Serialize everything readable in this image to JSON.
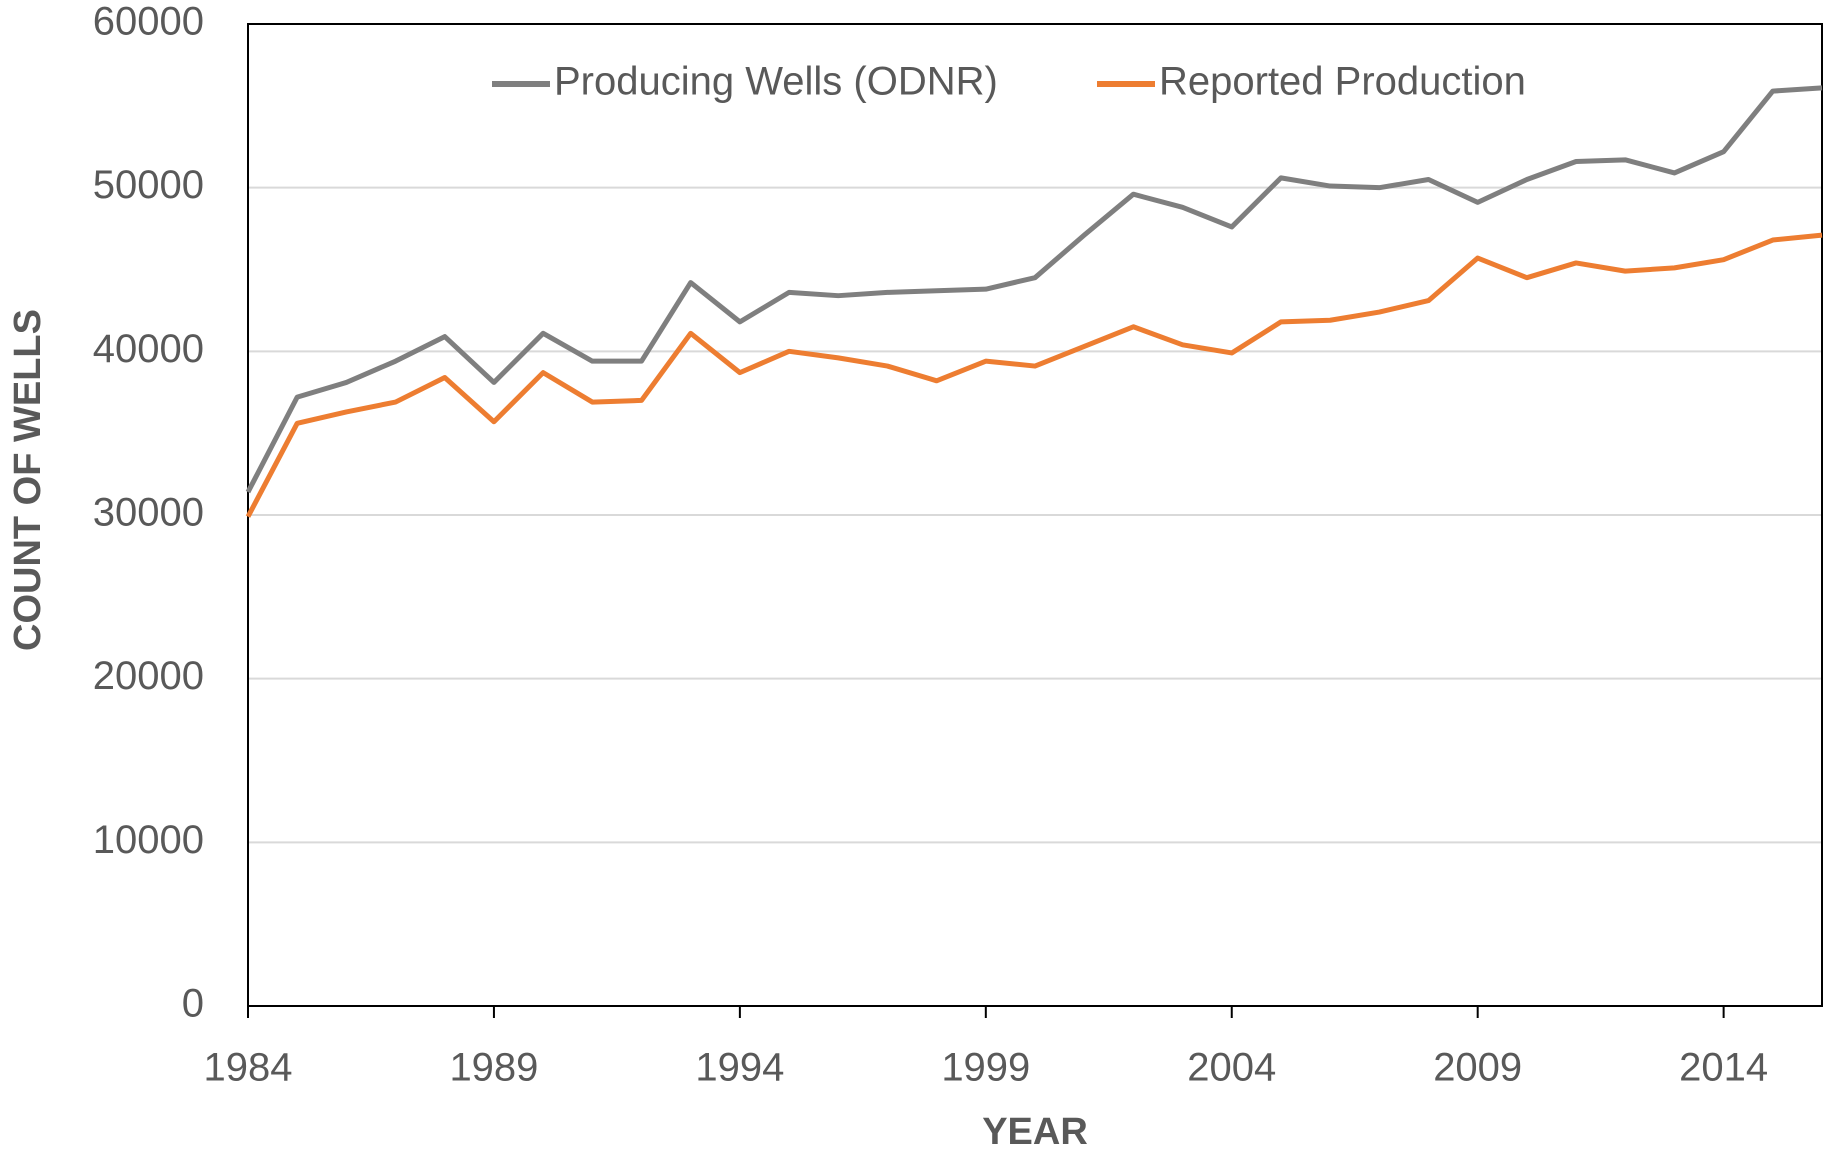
{
  "chart_data": {
    "type": "line",
    "x_label": "YEAR",
    "y_label": "COUNT OF WELLS",
    "x": [
      1984,
      1985,
      1986,
      1987,
      1988,
      1989,
      1990,
      1991,
      1992,
      1993,
      1994,
      1995,
      1996,
      1997,
      1998,
      1999,
      2000,
      2001,
      2002,
      2003,
      2004,
      2005,
      2006,
      2007,
      2008,
      2009,
      2010,
      2011,
      2012,
      2013,
      2014,
      2015,
      2016
    ],
    "series": [
      {
        "name": "Producing Wells (ODNR)",
        "color": "#7f7f7f",
        "values": [
          31400,
          37200,
          38100,
          39400,
          40900,
          38100,
          41100,
          39400,
          39400,
          44200,
          41800,
          43600,
          43400,
          43600,
          43700,
          43800,
          44500,
          47100,
          49600,
          48800,
          47600,
          50600,
          50100,
          50000,
          50500,
          49100,
          50500,
          51600,
          51700,
          50900,
          52200,
          55900,
          56100
        ]
      },
      {
        "name": "Reported Production",
        "color": "#ed7d31",
        "values": [
          29900,
          35600,
          36300,
          36900,
          38400,
          35700,
          38700,
          36900,
          37000,
          41100,
          38700,
          40000,
          39600,
          39100,
          38200,
          39400,
          39100,
          40300,
          41500,
          40400,
          39900,
          41800,
          41900,
          42400,
          43100,
          45700,
          44500,
          45400,
          44900,
          45100,
          45600,
          46800,
          47100
        ]
      }
    ],
    "xlim": [
      1984,
      2016
    ],
    "xticks": [
      1984,
      1989,
      1994,
      1999,
      2004,
      2009,
      2014
    ],
    "ylim": [
      0,
      60000
    ],
    "yticks": [
      0,
      10000,
      20000,
      30000,
      40000,
      50000,
      60000
    ],
    "grid": true,
    "legend": "top"
  }
}
